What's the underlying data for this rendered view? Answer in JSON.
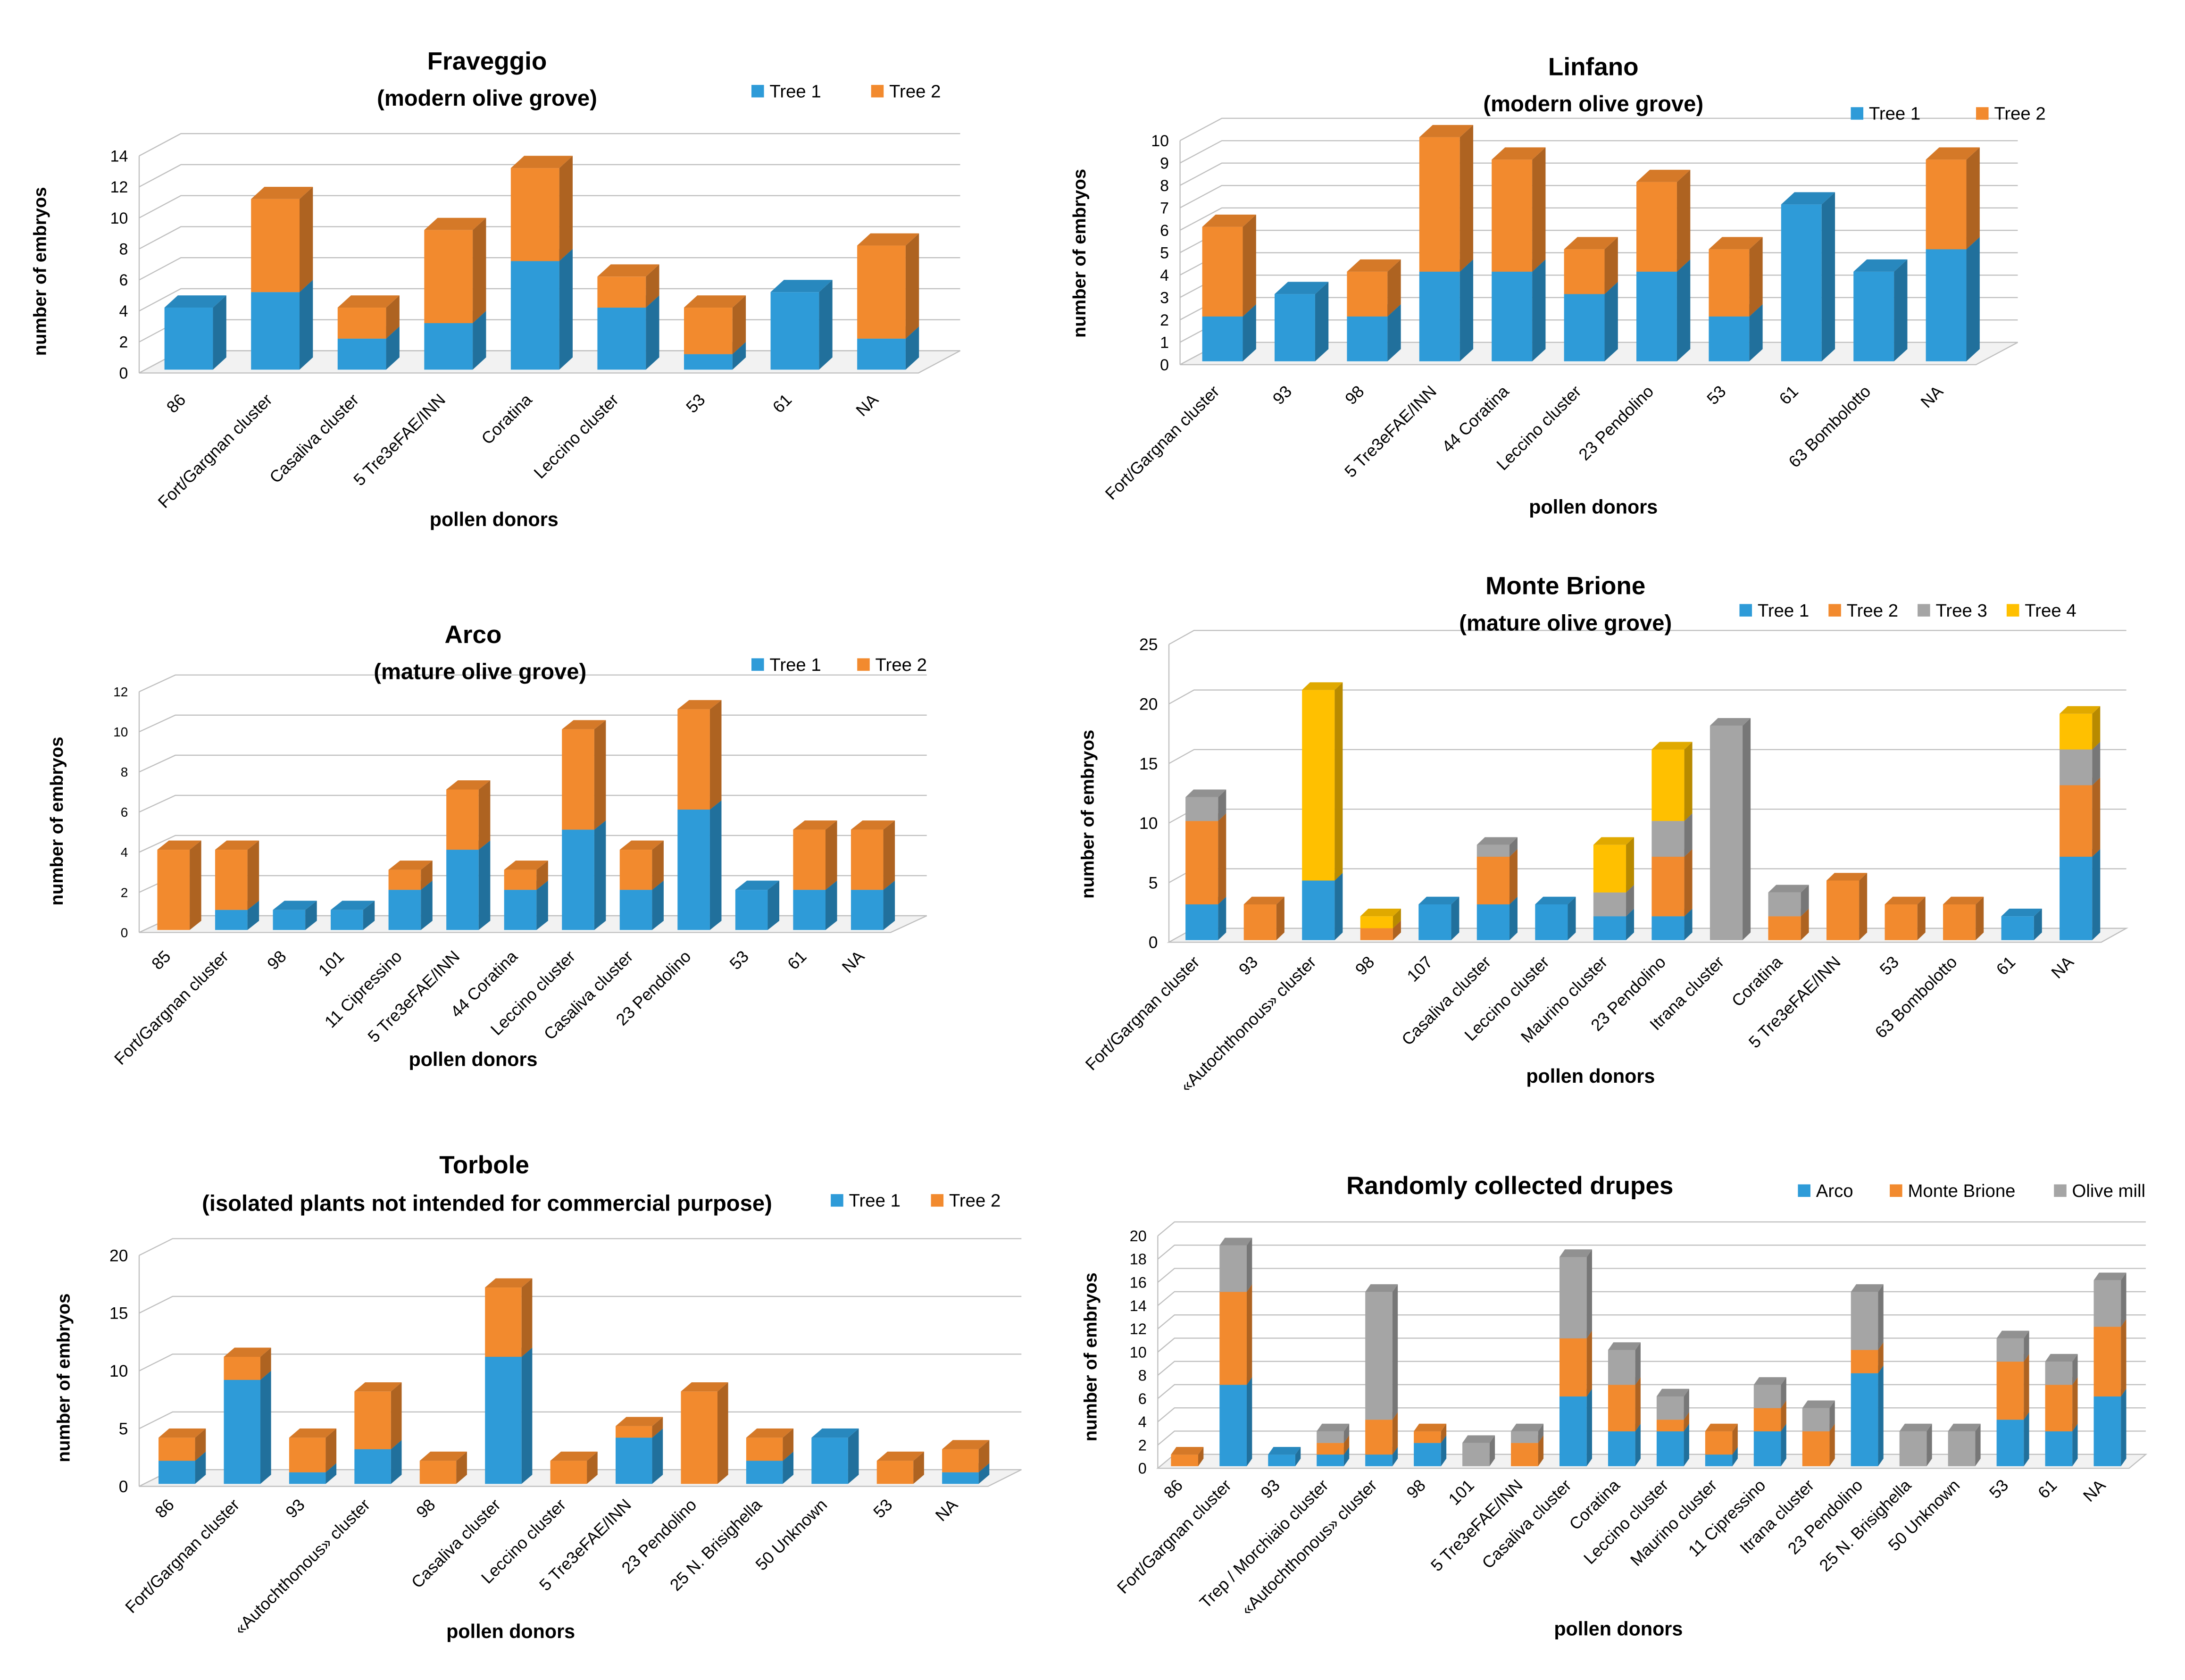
{
  "colors": {
    "Tree 1": "#2e9bd8",
    "Tree 2": "#f28a2e",
    "Tree 3": "#a5a5a5",
    "Tree 4": "#ffc000",
    "Arco": "#2e9bd8",
    "Monte Brione": "#f28a2e",
    "Olive mill": "#a5a5a5"
  },
  "chart_data": [
    {
      "type": "bar",
      "stacked": true,
      "title": "Fraveggio",
      "subtitle": "(modern olive grove)",
      "xlabel": "pollen donors",
      "ylabel": "number of embryos",
      "ylim": [
        0,
        14
      ],
      "yticks": [
        0,
        2,
        4,
        6,
        8,
        10,
        12,
        14
      ],
      "categories": [
        "86",
        "Fort/Gargnan cluster",
        "Casaliva cluster",
        "5 Tre3eFAE/INN",
        "Coratina",
        "Leccino cluster",
        "53",
        "61",
        "NA"
      ],
      "series": [
        {
          "name": "Tree 1",
          "values": [
            4,
            5,
            2,
            3,
            7,
            4,
            1,
            5,
            2
          ]
        },
        {
          "name": "Tree 2",
          "values": [
            0,
            6,
            2,
            6,
            6,
            2,
            3,
            0,
            6
          ]
        }
      ]
    },
    {
      "type": "bar",
      "stacked": true,
      "title": "Linfano",
      "subtitle": "(modern olive grove)",
      "xlabel": "pollen donors",
      "ylabel": "number of embryos",
      "ylim": [
        0,
        10
      ],
      "yticks": [
        0,
        1,
        2,
        3,
        4,
        5,
        6,
        7,
        8,
        9,
        10
      ],
      "categories": [
        "Fort/Gargnan cluster",
        "93",
        "98",
        "5 Tre3eFAE/INN",
        "44 Coratina",
        "Leccino cluster",
        "23 Pendolino",
        "53",
        "61",
        "63 Bombolotto",
        "NA"
      ],
      "series": [
        {
          "name": "Tree 1",
          "values": [
            2,
            3,
            2,
            4,
            4,
            3,
            4,
            2,
            7,
            4,
            5
          ]
        },
        {
          "name": "Tree 2",
          "values": [
            4,
            0,
            2,
            6,
            5,
            2,
            4,
            3,
            0,
            0,
            4
          ]
        }
      ]
    },
    {
      "type": "bar",
      "stacked": true,
      "title": "Arco",
      "subtitle": "(mature olive grove)",
      "xlabel": "pollen donors",
      "ylabel": "number of embryos",
      "ylim": [
        0,
        12
      ],
      "yticks": [
        0,
        2,
        4,
        6,
        8,
        10,
        12
      ],
      "categories": [
        "85",
        "Fort/Gargnan cluster",
        "98",
        "101",
        "11 Cipressino",
        "5 Tre3eFAE/INN",
        "44 Coratina",
        "Leccino cluster",
        "Casaliva cluster",
        "23 Pendolino",
        "53",
        "61",
        "NA"
      ],
      "series": [
        {
          "name": "Tree 1",
          "values": [
            0,
            1,
            1,
            1,
            2,
            4,
            2,
            5,
            2,
            6,
            2,
            2,
            2
          ]
        },
        {
          "name": "Tree 2",
          "values": [
            4,
            3,
            0,
            0,
            1,
            3,
            1,
            5,
            2,
            5,
            0,
            3,
            3
          ]
        }
      ]
    },
    {
      "type": "bar",
      "stacked": true,
      "title": "Monte Brione",
      "subtitle": "(mature olive grove)",
      "xlabel": "pollen donors",
      "ylabel": "number of embryos",
      "ylim": [
        0,
        25
      ],
      "yticks": [
        0,
        5,
        10,
        15,
        20,
        25
      ],
      "categories": [
        "Fort/Gargnan cluster",
        "93",
        "«Autochthonous» cluster",
        "98",
        "107",
        "Casaliva cluster",
        "Leccino cluster",
        "Maurino cluster",
        "23 Pendolino",
        "Itrana cluster",
        "Coratina",
        "5 Tre3eFAE/INN",
        "53",
        "63 Bombolotto",
        "61",
        "NA"
      ],
      "series": [
        {
          "name": "Tree 1",
          "values": [
            3,
            0,
            5,
            0,
            3,
            3,
            3,
            2,
            2,
            0,
            0,
            0,
            0,
            0,
            2,
            7
          ]
        },
        {
          "name": "Tree 2",
          "values": [
            7,
            3,
            0,
            1,
            0,
            4,
            0,
            0,
            5,
            0,
            2,
            5,
            3,
            3,
            0,
            6
          ]
        },
        {
          "name": "Tree 3",
          "values": [
            2,
            0,
            0,
            0,
            0,
            1,
            0,
            2,
            3,
            18,
            2,
            0,
            0,
            0,
            0,
            3
          ]
        },
        {
          "name": "Tree 4",
          "values": [
            0,
            0,
            16,
            1,
            0,
            0,
            0,
            4,
            6,
            0,
            0,
            0,
            0,
            0,
            0,
            3
          ]
        }
      ]
    },
    {
      "type": "bar",
      "stacked": true,
      "title": "Torbole",
      "subtitle": "(isolated plants not intended for commercial purpose)",
      "xlabel": "pollen donors",
      "ylabel": "number of embryos",
      "ylim": [
        0,
        20
      ],
      "yticks": [
        0,
        5,
        10,
        15,
        20
      ],
      "categories": [
        "86",
        "Fort/Gargnan cluster",
        "93",
        "«Autochthonous» cluster",
        "98",
        "Casaliva cluster",
        "Leccino cluster",
        "5 Tre3eFAE/INN",
        "23 Pendolino",
        "25 N. Brisighella",
        "50 Unknown",
        "53",
        "NA"
      ],
      "series": [
        {
          "name": "Tree 1",
          "values": [
            2,
            9,
            1,
            3,
            0,
            11,
            0,
            4,
            0,
            2,
            4,
            0,
            1
          ]
        },
        {
          "name": "Tree 2",
          "values": [
            2,
            2,
            3,
            5,
            2,
            6,
            2,
            1,
            8,
            2,
            0,
            2,
            2
          ]
        }
      ]
    },
    {
      "type": "bar",
      "stacked": true,
      "title": "Randomly collected drupes",
      "subtitle": "",
      "xlabel": "pollen donors",
      "ylabel": "number of embryos",
      "ylim": [
        0,
        20
      ],
      "yticks": [
        0,
        2,
        4,
        6,
        8,
        10,
        12,
        14,
        16,
        18,
        20
      ],
      "categories": [
        "86",
        "Fort/Gargnan cluster",
        "93",
        "Trep / Morchiaio cluster",
        "«Autochthonous» cluster",
        "98",
        "101",
        "5 Tre3eFAE/INN",
        "Casaliva cluster",
        "Coratina",
        "Leccino cluster",
        "Maurino cluster",
        "11 Cipressino",
        "Itrana cluster",
        "23 Pendolino",
        "25 N. Brisighella",
        "50 Unknown",
        "53",
        "61",
        "NA"
      ],
      "series": [
        {
          "name": "Arco",
          "values": [
            0,
            7,
            1,
            1,
            1,
            2,
            0,
            0,
            6,
            3,
            3,
            1,
            3,
            0,
            8,
            0,
            0,
            4,
            3,
            6
          ]
        },
        {
          "name": "Monte Brione",
          "values": [
            1,
            8,
            0,
            1,
            3,
            1,
            0,
            2,
            5,
            4,
            1,
            2,
            2,
            3,
            2,
            0,
            0,
            5,
            4,
            6
          ]
        },
        {
          "name": "Olive mill",
          "values": [
            0,
            4,
            0,
            1,
            11,
            0,
            2,
            1,
            7,
            3,
            2,
            0,
            2,
            2,
            5,
            3,
            3,
            2,
            2,
            4
          ]
        }
      ]
    }
  ]
}
